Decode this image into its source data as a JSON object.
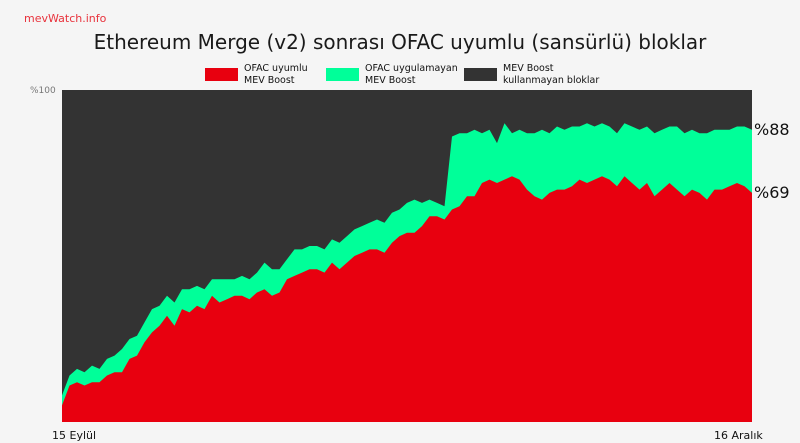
{
  "source": "mevWatch.info",
  "chart_data": {
    "type": "area",
    "title": "Ethereum Merge (v2) sonrası OFAC uyumlu (sansürlü) bloklar",
    "xlabel": "",
    "ylabel": "",
    "ylim": [
      0,
      100
    ],
    "y_tick_label": "%100",
    "x_start_label": "15 Eylül",
    "x_end_label": "16 Aralık",
    "stacked": true,
    "legend_position": "top-center",
    "grid": false,
    "days": 93,
    "series": [
      {
        "name": "OFAC uyumlu\nMEV Boost",
        "color": "#e8000f",
        "end_label": "%69",
        "end_value": 69,
        "values": [
          5,
          11,
          12,
          11,
          12,
          12,
          14,
          15,
          15,
          19,
          20,
          24,
          27,
          29,
          32,
          29,
          34,
          33,
          35,
          34,
          38,
          36,
          37,
          38,
          38,
          37,
          39,
          40,
          38,
          39,
          43,
          44,
          45,
          46,
          46,
          45,
          48,
          46,
          48,
          50,
          51,
          52,
          52,
          51,
          54,
          56,
          57,
          57,
          59,
          62,
          62,
          61,
          64,
          65,
          68,
          68,
          72,
          73,
          72,
          73,
          74,
          73,
          70,
          68,
          67,
          69,
          70,
          70,
          71,
          73,
          72,
          73,
          74,
          73,
          71,
          74,
          72,
          70,
          72,
          68,
          70,
          72,
          70,
          68,
          70,
          69,
          67,
          70,
          70,
          71,
          72,
          71,
          69
        ]
      },
      {
        "name": "OFAC uygulamayan\nMEV Boost",
        "color": "#00ff99",
        "end_label": "%88",
        "end_value": 88,
        "values": [
          8,
          14,
          16,
          15,
          17,
          16,
          19,
          20,
          22,
          25,
          26,
          30,
          34,
          35,
          38,
          36,
          40,
          40,
          41,
          40,
          43,
          43,
          43,
          43,
          44,
          43,
          45,
          48,
          46,
          46,
          49,
          52,
          52,
          53,
          53,
          52,
          55,
          54,
          56,
          58,
          59,
          60,
          61,
          60,
          63,
          64,
          66,
          67,
          66,
          67,
          66,
          65,
          86,
          87,
          87,
          88,
          87,
          88,
          84,
          90,
          87,
          88,
          87,
          87,
          88,
          87,
          89,
          88,
          89,
          89,
          90,
          89,
          90,
          89,
          87,
          90,
          89,
          88,
          89,
          87,
          88,
          89,
          89,
          87,
          88,
          87,
          87,
          88,
          88,
          88,
          89,
          89,
          88
        ]
      },
      {
        "name": "MEV Boost\nkullanmayan bloklar",
        "color": "#333333",
        "values": [
          100
        ]
      }
    ]
  }
}
